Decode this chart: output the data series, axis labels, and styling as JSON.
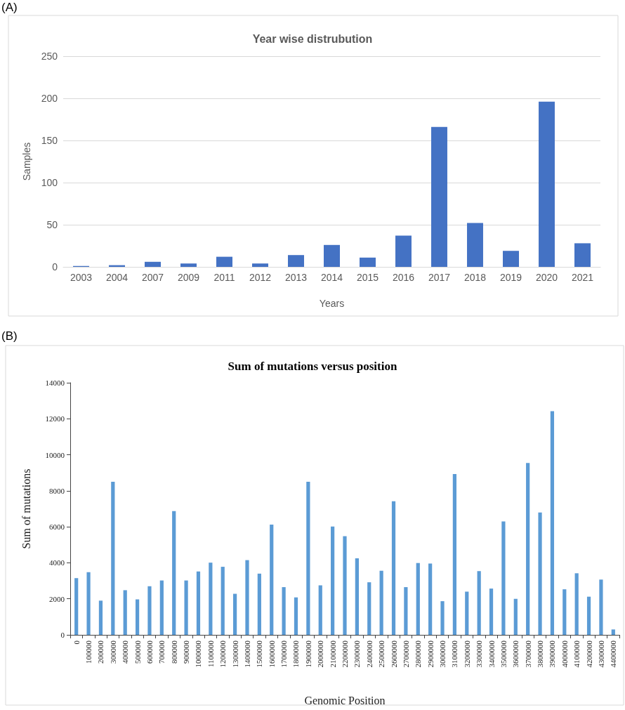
{
  "chart_data": [
    {
      "type": "bar",
      "title": "Year wise distrubution",
      "xlabel": "Years",
      "ylabel": "Samples",
      "annotations": [
        "(A)"
      ],
      "categories": [
        "2003",
        "2004",
        "2007",
        "2009",
        "2011",
        "2012",
        "2013",
        "2014",
        "2015",
        "2016",
        "2017",
        "2018",
        "2019",
        "2020",
        "2021"
      ],
      "values": [
        1,
        2,
        6,
        4,
        12,
        4,
        14,
        26,
        11,
        37,
        166,
        52,
        19,
        196,
        28
      ],
      "color": "#4472c4",
      "ylim": [
        0,
        250
      ],
      "yticks": [
        0,
        50,
        100,
        150,
        200,
        250
      ],
      "grid": "y"
    },
    {
      "type": "bar",
      "title": "Sum of mutations versus position",
      "xlabel": "Genomic Position",
      "ylabel": "Sum of mutations",
      "annotations": [
        "(B)"
      ],
      "categories": [
        "0",
        "100000",
        "200000",
        "300000",
        "400000",
        "500000",
        "600000",
        "700000",
        "800000",
        "900000",
        "1000000",
        "1100000",
        "1200000",
        "1300000",
        "1400000",
        "1500000",
        "1600000",
        "1700000",
        "1800000",
        "1900000",
        "2000000",
        "2100000",
        "2200000",
        "2300000",
        "2400000",
        "2500000",
        "2600000",
        "2700000",
        "2800000",
        "2900000",
        "3000000",
        "3100000",
        "3200000",
        "3300000",
        "3400000",
        "3500000",
        "3600000",
        "3700000",
        "3800000",
        "3900000",
        "4000000",
        "4100000",
        "4200000",
        "4300000",
        "4400000"
      ],
      "values": [
        3150,
        3480,
        1900,
        8500,
        2480,
        1970,
        2700,
        3020,
        6870,
        3020,
        3520,
        4010,
        3780,
        2280,
        4150,
        3400,
        6120,
        2650,
        2080,
        8500,
        2750,
        6020,
        5480,
        4250,
        2920,
        3560,
        7420,
        2650,
        3990,
        3960,
        1870,
        8930,
        2400,
        3540,
        2570,
        6300,
        2000,
        9540,
        6800,
        12420,
        2530,
        3420,
        2120,
        3070,
        300
      ],
      "color": "#5b9bd5",
      "ylim": [
        0,
        14000
      ],
      "yticks": [
        0,
        2000,
        4000,
        6000,
        8000,
        10000,
        12000,
        14000
      ],
      "grid": false
    }
  ]
}
